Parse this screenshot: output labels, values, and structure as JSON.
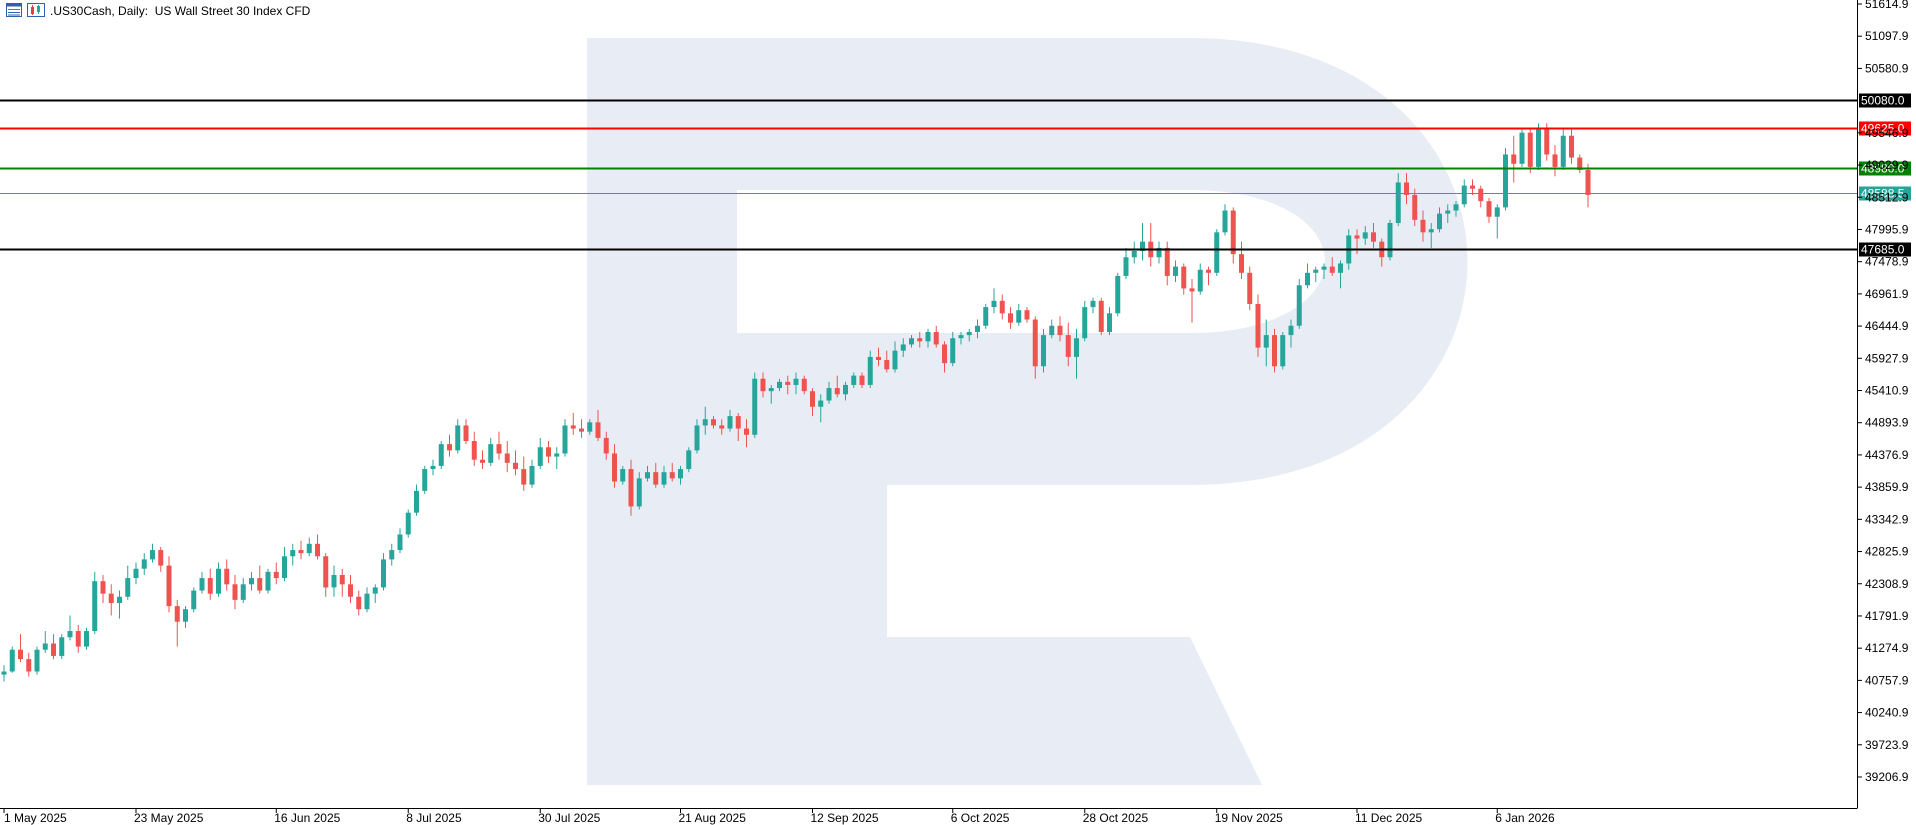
{
  "header": {
    "symbol": ".US30Cash",
    "timeframe": "Daily",
    "description": "US Wall Street 30 Index CFD",
    "title": ".US30Cash, Daily:  US Wall Street 30 Index CFD"
  },
  "colors": {
    "bull": "#26a69a",
    "bear": "#ef5350",
    "grid": "#000000",
    "watermark": "#e8edf5",
    "resistance_black": "#000000",
    "resistance_red": "#ff0000",
    "support_green": "#008000",
    "current": "#26a69a"
  },
  "chart_data": {
    "type": "candlestick",
    "title": ".US30Cash, Daily:  US Wall Street 30 Index CFD",
    "xlabel": "",
    "ylabel": "",
    "ylim": [
      38750,
      51750
    ],
    "y_ticks": [
      "51614.9",
      "51097.9",
      "50580.9",
      "49546.9",
      "49029.9",
      "48512.9",
      "47995.9",
      "47478.9",
      "46961.9",
      "46444.9",
      "45927.9",
      "45410.9",
      "44893.9",
      "44376.9",
      "43859.9",
      "43342.9",
      "42825.9",
      "42308.9",
      "41791.9",
      "41274.9",
      "40757.9",
      "40240.9",
      "39723.9",
      "39206.9"
    ],
    "x_labels": [
      "1 May 2025",
      "23 May 2025",
      "16 Jun 2025",
      "8 Jul 2025",
      "30 Jul 2025",
      "21 Aug 2025",
      "12 Sep 2025",
      "6 Oct 2025",
      "28 Oct 2025",
      "19 Nov 2025",
      "11 Dec 2025",
      "6 Jan 2026"
    ],
    "x_label_index": [
      0,
      16,
      33,
      49,
      65,
      82,
      98,
      115,
      131,
      147,
      164,
      181
    ],
    "levels": [
      {
        "name": "resistance-2",
        "value": 50080.0,
        "label": "50080.0",
        "color": "#000000"
      },
      {
        "name": "resistance-1",
        "value": 49625.0,
        "label": "49625.0",
        "color": "#ff0000"
      },
      {
        "name": "support-1",
        "value": 48980.0,
        "label": "48980.0",
        "color": "#008000"
      },
      {
        "name": "current-price",
        "value": 48588.5,
        "label": "48588.5",
        "color": "#26a69a"
      },
      {
        "name": "support-2",
        "value": 47685.0,
        "label": "47685.0",
        "color": "#000000"
      }
    ],
    "candles": [
      [
        40850,
        41000,
        40740,
        40900
      ],
      [
        40900,
        41300,
        40880,
        41250
      ],
      [
        41250,
        41500,
        41050,
        41100
      ],
      [
        41100,
        41200,
        40820,
        40900
      ],
      [
        40900,
        41300,
        40850,
        41250
      ],
      [
        41250,
        41550,
        41200,
        41350
      ],
      [
        41350,
        41500,
        41100,
        41150
      ],
      [
        41150,
        41500,
        41100,
        41450
      ],
      [
        41450,
        41800,
        41400,
        41550
      ],
      [
        41550,
        41650,
        41200,
        41300
      ],
      [
        41300,
        41600,
        41250,
        41550
      ],
      [
        41550,
        42500,
        41500,
        42350
      ],
      [
        42350,
        42450,
        42000,
        42150
      ],
      [
        42150,
        42300,
        41800,
        42000
      ],
      [
        42000,
        42200,
        41750,
        42100
      ],
      [
        42100,
        42600,
        42050,
        42400
      ],
      [
        42400,
        42650,
        42300,
        42550
      ],
      [
        42550,
        42800,
        42450,
        42700
      ],
      [
        42700,
        42950,
        42650,
        42850
      ],
      [
        42850,
        42900,
        42500,
        42600
      ],
      [
        42600,
        42750,
        41850,
        41950
      ],
      [
        41950,
        42050,
        41300,
        41700
      ],
      [
        41700,
        41950,
        41600,
        41900
      ],
      [
        41900,
        42250,
        41850,
        42200
      ],
      [
        42200,
        42500,
        42150,
        42400
      ],
      [
        42400,
        42550,
        42050,
        42150
      ],
      [
        42150,
        42650,
        42100,
        42550
      ],
      [
        42550,
        42700,
        42200,
        42300
      ],
      [
        42300,
        42450,
        41900,
        42050
      ],
      [
        42050,
        42400,
        42000,
        42300
      ],
      [
        42300,
        42500,
        42200,
        42400
      ],
      [
        42400,
        42600,
        42150,
        42200
      ],
      [
        42200,
        42550,
        42150,
        42500
      ],
      [
        42500,
        42650,
        42300,
        42400
      ],
      [
        42400,
        42900,
        42350,
        42750
      ],
      [
        42750,
        42950,
        42600,
        42850
      ],
      [
        42850,
        43000,
        42700,
        42800
      ],
      [
        42800,
        43050,
        42750,
        42950
      ],
      [
        42950,
        43100,
        42700,
        42750
      ],
      [
        42750,
        42800,
        42100,
        42250
      ],
      [
        42250,
        42600,
        42100,
        42450
      ],
      [
        42450,
        42550,
        42100,
        42300
      ],
      [
        42300,
        42450,
        42000,
        42100
      ],
      [
        42100,
        42200,
        41800,
        41900
      ],
      [
        41900,
        42250,
        41850,
        42150
      ],
      [
        42150,
        42300,
        42000,
        42250
      ],
      [
        42250,
        42800,
        42200,
        42700
      ],
      [
        42700,
        42950,
        42600,
        42850
      ],
      [
        42850,
        43200,
        42800,
        43100
      ],
      [
        43100,
        43500,
        43050,
        43450
      ],
      [
        43450,
        43900,
        43400,
        43800
      ],
      [
        43800,
        44200,
        43750,
        44150
      ],
      [
        44150,
        44300,
        44050,
        44200
      ],
      [
        44200,
        44600,
        44150,
        44550
      ],
      [
        44550,
        44700,
        44350,
        44450
      ],
      [
        44450,
        44950,
        44400,
        44850
      ],
      [
        44850,
        44950,
        44550,
        44600
      ],
      [
        44600,
        44750,
        44200,
        44300
      ],
      [
        44300,
        44450,
        44150,
        44250
      ],
      [
        44250,
        44650,
        44200,
        44550
      ],
      [
        44550,
        44750,
        44300,
        44400
      ],
      [
        44400,
        44600,
        44100,
        44250
      ],
      [
        44250,
        44450,
        44050,
        44150
      ],
      [
        44150,
        44350,
        43800,
        43900
      ],
      [
        43900,
        44300,
        43850,
        44200
      ],
      [
        44200,
        44650,
        44150,
        44500
      ],
      [
        44500,
        44600,
        44250,
        44350
      ],
      [
        44350,
        44500,
        44150,
        44400
      ],
      [
        44400,
        44950,
        44350,
        44850
      ],
      [
        44850,
        45050,
        44700,
        44800
      ],
      [
        44800,
        44950,
        44650,
        44750
      ],
      [
        44750,
        44950,
        44700,
        44900
      ],
      [
        44900,
        45100,
        44600,
        44650
      ],
      [
        44650,
        44750,
        44300,
        44400
      ],
      [
        44400,
        44550,
        43850,
        43950
      ],
      [
        43950,
        44200,
        43900,
        44150
      ],
      [
        44150,
        44300,
        43400,
        43550
      ],
      [
        43550,
        44100,
        43500,
        44000
      ],
      [
        44000,
        44200,
        43950,
        44100
      ],
      [
        44100,
        44250,
        43850,
        43900
      ],
      [
        43900,
        44200,
        43850,
        44100
      ],
      [
        44100,
        44250,
        43950,
        44000
      ],
      [
        44000,
        44200,
        43900,
        44150
      ],
      [
        44150,
        44500,
        44100,
        44450
      ],
      [
        44450,
        44950,
        44400,
        44850
      ],
      [
        44850,
        45150,
        44700,
        44950
      ],
      [
        44950,
        45000,
        44800,
        44850
      ],
      [
        44850,
        44950,
        44700,
        44800
      ],
      [
        44800,
        45100,
        44750,
        45000
      ],
      [
        45000,
        45050,
        44600,
        44800
      ],
      [
        44800,
        44950,
        44500,
        44700
      ],
      [
        44700,
        45700,
        44650,
        45600
      ],
      [
        45600,
        45700,
        45300,
        45400
      ],
      [
        45400,
        45500,
        45200,
        45450
      ],
      [
        45450,
        45600,
        45400,
        45550
      ],
      [
        45550,
        45650,
        45350,
        45500
      ],
      [
        45500,
        45700,
        45350,
        45600
      ],
      [
        45600,
        45650,
        45350,
        45400
      ],
      [
        45400,
        45450,
        45000,
        45150
      ],
      [
        45150,
        45350,
        44900,
        45250
      ],
      [
        45250,
        45550,
        45200,
        45450
      ],
      [
        45450,
        45650,
        45300,
        45350
      ],
      [
        45350,
        45550,
        45250,
        45500
      ],
      [
        45500,
        45700,
        45450,
        45650
      ],
      [
        45650,
        45700,
        45450,
        45500
      ],
      [
        45500,
        46050,
        45450,
        45950
      ],
      [
        45950,
        46100,
        45800,
        45900
      ],
      [
        45900,
        46050,
        45700,
        45750
      ],
      [
        45750,
        46200,
        45700,
        46050
      ],
      [
        46050,
        46250,
        45950,
        46150
      ],
      [
        46150,
        46300,
        46100,
        46250
      ],
      [
        46250,
        46350,
        46100,
        46200
      ],
      [
        46200,
        46400,
        46100,
        46350
      ],
      [
        46350,
        46450,
        46100,
        46150
      ],
      [
        46150,
        46200,
        45700,
        45850
      ],
      [
        45850,
        46350,
        45800,
        46250
      ],
      [
        46250,
        46350,
        46150,
        46300
      ],
      [
        46300,
        46400,
        46200,
        46350
      ],
      [
        46350,
        46550,
        46250,
        46450
      ],
      [
        46450,
        46800,
        46400,
        46750
      ],
      [
        46750,
        47050,
        46650,
        46850
      ],
      [
        46850,
        46950,
        46550,
        46650
      ],
      [
        46650,
        46750,
        46400,
        46500
      ],
      [
        46500,
        46800,
        46450,
        46700
      ],
      [
        46700,
        46750,
        46500,
        46550
      ],
      [
        46550,
        46600,
        45600,
        45800
      ],
      [
        45800,
        46400,
        45700,
        46300
      ],
      [
        46300,
        46550,
        46250,
        46450
      ],
      [
        46450,
        46600,
        46200,
        46300
      ],
      [
        46300,
        46500,
        45800,
        45950
      ],
      [
        45950,
        46400,
        45600,
        46250
      ],
      [
        46250,
        46850,
        46200,
        46750
      ],
      [
        46750,
        46900,
        46650,
        46850
      ],
      [
        46850,
        46900,
        46300,
        46350
      ],
      [
        46350,
        46750,
        46300,
        46650
      ],
      [
        46650,
        47300,
        46600,
        47250
      ],
      [
        47250,
        47700,
        47200,
        47550
      ],
      [
        47550,
        47800,
        47450,
        47650
      ],
      [
        47650,
        48100,
        47500,
        47800
      ],
      [
        47800,
        48100,
        47400,
        47550
      ],
      [
        47550,
        47800,
        47450,
        47700
      ],
      [
        47700,
        47800,
        47100,
        47250
      ],
      [
        47250,
        47500,
        47150,
        47400
      ],
      [
        47400,
        47450,
        46950,
        47050
      ],
      [
        47050,
        47200,
        46500,
        47000
      ],
      [
        47000,
        47450,
        46950,
        47350
      ],
      [
        47350,
        47400,
        47100,
        47300
      ],
      [
        47300,
        48000,
        47250,
        47950
      ],
      [
        47950,
        48400,
        47900,
        48300
      ],
      [
        48300,
        48350,
        47450,
        47600
      ],
      [
        47600,
        47800,
        47200,
        47300
      ],
      [
        47300,
        47400,
        46700,
        46800
      ],
      [
        46800,
        46950,
        45950,
        46100
      ],
      [
        46100,
        46550,
        45800,
        46300
      ],
      [
        46300,
        46400,
        45700,
        45800
      ],
      [
        45800,
        46350,
        45750,
        46300
      ],
      [
        46300,
        46550,
        46100,
        46450
      ],
      [
        46450,
        47200,
        46400,
        47100
      ],
      [
        47100,
        47450,
        47050,
        47300
      ],
      [
        47300,
        47400,
        47150,
        47350
      ],
      [
        47350,
        47450,
        47200,
        47400
      ],
      [
        47400,
        47550,
        47250,
        47300
      ],
      [
        47300,
        47500,
        47050,
        47450
      ],
      [
        47450,
        48000,
        47350,
        47900
      ],
      [
        47900,
        48000,
        47600,
        47850
      ],
      [
        47850,
        48050,
        47750,
        47950
      ],
      [
        47950,
        48100,
        47700,
        47800
      ],
      [
        47800,
        47850,
        47400,
        47550
      ],
      [
        47550,
        48150,
        47500,
        48100
      ],
      [
        48100,
        48900,
        48050,
        48750
      ],
      [
        48750,
        48900,
        48400,
        48550
      ],
      [
        48550,
        48650,
        48050,
        48150
      ],
      [
        48150,
        48300,
        47800,
        47950
      ],
      [
        47950,
        48100,
        47700,
        48000
      ],
      [
        48000,
        48350,
        47950,
        48250
      ],
      [
        48250,
        48400,
        48100,
        48300
      ],
      [
        48300,
        48450,
        48200,
        48400
      ],
      [
        48400,
        48800,
        48350,
        48700
      ],
      [
        48700,
        48800,
        48550,
        48650
      ],
      [
        48650,
        48700,
        48350,
        48450
      ],
      [
        48450,
        48500,
        48100,
        48200
      ],
      [
        48200,
        48400,
        47850,
        48350
      ],
      [
        48350,
        49300,
        48300,
        49200
      ],
      [
        49200,
        49500,
        48750,
        49050
      ],
      [
        49050,
        49600,
        49000,
        49550
      ],
      [
        49550,
        49600,
        48900,
        49000
      ],
      [
        49000,
        49700,
        48950,
        49600
      ],
      [
        49600,
        49700,
        49100,
        49200
      ],
      [
        49200,
        49350,
        48850,
        49000
      ],
      [
        49000,
        49600,
        48950,
        49500
      ],
      [
        49500,
        49600,
        49050,
        49150
      ],
      [
        49150,
        49200,
        48900,
        48950
      ],
      [
        48950,
        49050,
        48350,
        48550
      ]
    ]
  }
}
